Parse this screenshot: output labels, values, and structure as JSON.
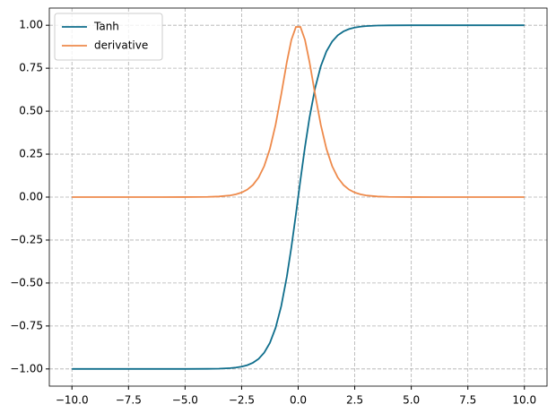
{
  "chart_data": {
    "type": "line",
    "x": [
      -10,
      -9,
      -8,
      -7,
      -6,
      -5,
      -4,
      -3.5,
      -3,
      -2.75,
      -2.5,
      -2.25,
      -2,
      -1.75,
      -1.5,
      -1.25,
      -1,
      -0.75,
      -0.5,
      -0.3,
      -0.1,
      0.1,
      0.3,
      0.5,
      0.75,
      1,
      1.25,
      1.5,
      1.75,
      2,
      2.25,
      2.5,
      2.75,
      3,
      3.5,
      4,
      5,
      6,
      7,
      8,
      9,
      10
    ],
    "series": [
      {
        "name": "Tanh",
        "color": "#0f6e8c",
        "values": [
          -1,
          -1,
          -1,
          -1,
          -1,
          -0.9999,
          -0.9993,
          -0.9982,
          -0.9951,
          -0.9918,
          -0.9866,
          -0.978,
          -0.964,
          -0.9414,
          -0.9051,
          -0.8483,
          -0.7616,
          -0.6351,
          -0.4621,
          -0.2913,
          -0.0997,
          0.0997,
          0.2913,
          0.4621,
          0.6351,
          0.7616,
          0.8483,
          0.9051,
          0.9414,
          0.964,
          0.978,
          0.9866,
          0.9918,
          0.9951,
          0.9982,
          0.9993,
          0.9999,
          1,
          1,
          1,
          1,
          1
        ]
      },
      {
        "name": "derivative",
        "color": "#ee8a4b",
        "values": [
          0,
          0,
          0,
          0,
          0,
          0.0002,
          0.0013,
          0.0036,
          0.0099,
          0.0163,
          0.0266,
          0.0435,
          0.0707,
          0.1138,
          0.1807,
          0.2804,
          0.42,
          0.5966,
          0.7864,
          0.9151,
          0.9901,
          0.9901,
          0.9151,
          0.7864,
          0.5966,
          0.42,
          0.2804,
          0.1807,
          0.1138,
          0.0707,
          0.0435,
          0.0266,
          0.0163,
          0.0099,
          0.0036,
          0.0013,
          0.0002,
          0,
          0,
          0,
          0,
          0
        ]
      }
    ],
    "xlim": [
      -11,
      11
    ],
    "ylim": [
      -1.1,
      1.1
    ],
    "xticks": [
      {
        "value": -10,
        "label": "−10.0"
      },
      {
        "value": -7.5,
        "label": "−7.5"
      },
      {
        "value": -5,
        "label": "−5.0"
      },
      {
        "value": -2.5,
        "label": "−2.5"
      },
      {
        "value": 0,
        "label": "0.0"
      },
      {
        "value": 2.5,
        "label": "2.5"
      },
      {
        "value": 5,
        "label": "5.0"
      },
      {
        "value": 7.5,
        "label": "7.5"
      },
      {
        "value": 10,
        "label": "10.0"
      }
    ],
    "yticks": [
      {
        "value": -1,
        "label": "−1.00"
      },
      {
        "value": -0.75,
        "label": "−0.75"
      },
      {
        "value": -0.5,
        "label": "−0.50"
      },
      {
        "value": -0.25,
        "label": "−0.25"
      },
      {
        "value": 0,
        "label": "0.00"
      },
      {
        "value": 0.25,
        "label": "0.25"
      },
      {
        "value": 0.5,
        "label": "0.50"
      },
      {
        "value": 0.75,
        "label": "0.75"
      },
      {
        "value": 1,
        "label": "1.00"
      }
    ],
    "grid": true,
    "legend": "upper-left"
  }
}
